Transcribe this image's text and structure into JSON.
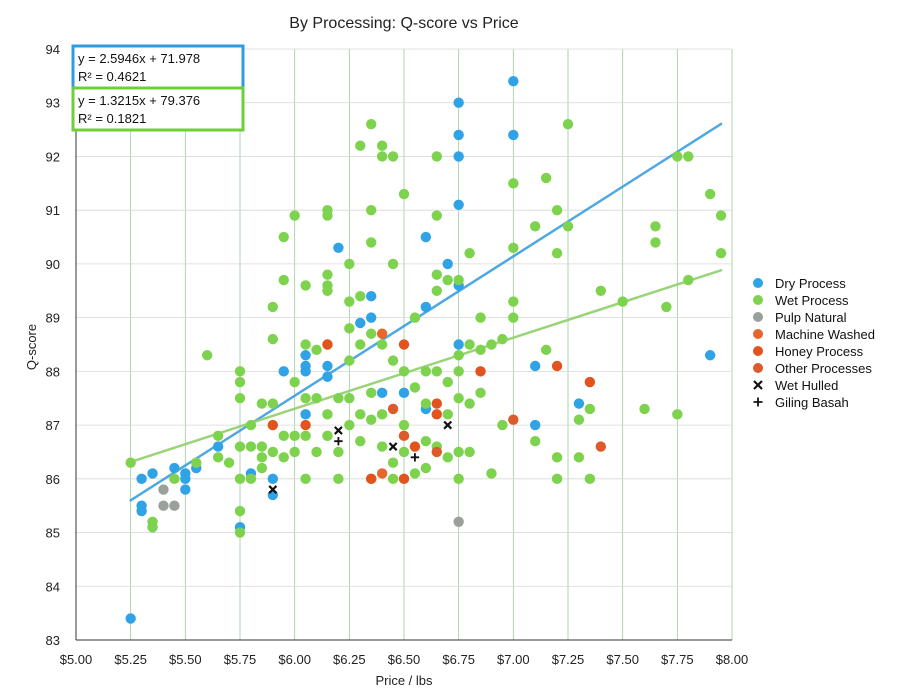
{
  "chart_data": {
    "type": "scatter",
    "title": "By Processing: Q-score vs Price",
    "xlabel": "Price / lbs",
    "ylabel": "Q-score",
    "xlim": [
      5.0,
      8.0
    ],
    "ylim": [
      83,
      94
    ],
    "x_ticks": [
      5.0,
      5.25,
      5.5,
      5.75,
      6.0,
      6.25,
      6.5,
      6.75,
      7.0,
      7.25,
      7.5,
      7.75,
      8.0
    ],
    "x_tick_labels": [
      "$5.00",
      "$5.25",
      "$5.50",
      "$5.75",
      "$6.00",
      "$6.25",
      "$6.50",
      "$6.75",
      "$7.00",
      "$7.25",
      "$7.50",
      "$7.75",
      "$8.00"
    ],
    "y_ticks": [
      83,
      84,
      85,
      86,
      87,
      88,
      89,
      90,
      91,
      92,
      93,
      94
    ],
    "y_tick_labels": [
      "83",
      "84",
      "85",
      "86",
      "87",
      "88",
      "89",
      "90",
      "91",
      "92",
      "93",
      "94"
    ],
    "grid": true,
    "legend_position": "right",
    "trendlines": [
      {
        "series": "Dry Process",
        "slope": 2.5946,
        "intercept": 71.978,
        "equation": "y = 2.5946x + 71.978",
        "r2": "R² = 0.4621",
        "color": "#3a9fe0",
        "box_color": "#2f9be0",
        "x_range": [
          5.25,
          7.95
        ]
      },
      {
        "series": "Wet Process",
        "slope": 1.3215,
        "intercept": 79.376,
        "equation": "y = 1.3215x + 79.376",
        "r2": "R² = 0.1821",
        "color": "#8fd16a",
        "box_color": "#6fcf3a",
        "x_range": [
          5.25,
          7.95
        ]
      }
    ],
    "series": [
      {
        "name": "Dry Process",
        "marker": "circle",
        "color": "#2fa3e6",
        "points": [
          [
            5.25,
            83.4
          ],
          [
            5.3,
            85.4
          ],
          [
            5.3,
            85.5
          ],
          [
            5.3,
            86.0
          ],
          [
            5.35,
            85.1
          ],
          [
            5.35,
            86.1
          ],
          [
            5.45,
            86.2
          ],
          [
            5.5,
            86.1
          ],
          [
            5.5,
            86.0
          ],
          [
            5.5,
            85.8
          ],
          [
            5.55,
            86.2
          ],
          [
            5.65,
            86.6
          ],
          [
            5.75,
            85.1
          ],
          [
            5.8,
            86.1
          ],
          [
            5.9,
            85.7
          ],
          [
            5.9,
            86.0
          ],
          [
            5.95,
            88.0
          ],
          [
            6.05,
            87.2
          ],
          [
            6.05,
            88.0
          ],
          [
            6.05,
            88.1
          ],
          [
            6.05,
            88.3
          ],
          [
            6.15,
            87.9
          ],
          [
            6.15,
            88.1
          ],
          [
            6.2,
            90.3
          ],
          [
            6.3,
            88.9
          ],
          [
            6.35,
            89.0
          ],
          [
            6.35,
            89.4
          ],
          [
            6.4,
            87.6
          ],
          [
            6.5,
            87.6
          ],
          [
            6.6,
            87.3
          ],
          [
            6.6,
            89.2
          ],
          [
            6.6,
            90.5
          ],
          [
            6.7,
            90.0
          ],
          [
            6.75,
            88.5
          ],
          [
            6.75,
            89.6
          ],
          [
            6.75,
            91.1
          ],
          [
            6.75,
            92.0
          ],
          [
            6.75,
            92.4
          ],
          [
            6.75,
            93.0
          ],
          [
            7.0,
            92.4
          ],
          [
            7.0,
            93.4
          ],
          [
            7.1,
            87.0
          ],
          [
            7.1,
            88.1
          ],
          [
            7.3,
            87.4
          ],
          [
            7.9,
            88.3
          ]
        ]
      },
      {
        "name": "Wet Process",
        "marker": "circle",
        "color": "#7ed34e",
        "points": [
          [
            5.25,
            86.3
          ],
          [
            5.35,
            85.2
          ],
          [
            5.35,
            85.1
          ],
          [
            5.45,
            86.0
          ],
          [
            5.55,
            86.3
          ],
          [
            5.6,
            88.3
          ],
          [
            5.65,
            86.8
          ],
          [
            5.65,
            86.4
          ],
          [
            5.7,
            86.3
          ],
          [
            5.75,
            86.6
          ],
          [
            5.75,
            86.0
          ],
          [
            5.75,
            85.4
          ],
          [
            5.75,
            85.0
          ],
          [
            5.75,
            87.5
          ],
          [
            5.75,
            87.8
          ],
          [
            5.75,
            88.0
          ],
          [
            5.8,
            86.6
          ],
          [
            5.8,
            86.0
          ],
          [
            5.8,
            87.0
          ],
          [
            5.85,
            86.6
          ],
          [
            5.85,
            86.2
          ],
          [
            5.85,
            86.4
          ],
          [
            5.85,
            87.4
          ],
          [
            5.9,
            88.6
          ],
          [
            5.9,
            89.2
          ],
          [
            5.9,
            87.4
          ],
          [
            5.9,
            86.5
          ],
          [
            5.95,
            86.8
          ],
          [
            5.95,
            86.4
          ],
          [
            5.95,
            89.7
          ],
          [
            5.95,
            90.5
          ],
          [
            6.0,
            90.9
          ],
          [
            6.0,
            87.8
          ],
          [
            6.0,
            86.8
          ],
          [
            6.0,
            86.5
          ],
          [
            6.05,
            89.6
          ],
          [
            6.05,
            88.5
          ],
          [
            6.05,
            86.8
          ],
          [
            6.05,
            86.0
          ],
          [
            6.05,
            87.5
          ],
          [
            6.1,
            88.4
          ],
          [
            6.1,
            87.5
          ],
          [
            6.1,
            86.5
          ],
          [
            6.15,
            91.0
          ],
          [
            6.15,
            90.9
          ],
          [
            6.15,
            89.8
          ],
          [
            6.15,
            89.6
          ],
          [
            6.15,
            89.5
          ],
          [
            6.15,
            88.5
          ],
          [
            6.15,
            87.2
          ],
          [
            6.15,
            86.8
          ],
          [
            6.2,
            87.5
          ],
          [
            6.2,
            86.5
          ],
          [
            6.2,
            86.0
          ],
          [
            6.25,
            90.0
          ],
          [
            6.25,
            89.3
          ],
          [
            6.25,
            88.8
          ],
          [
            6.25,
            88.2
          ],
          [
            6.25,
            87.5
          ],
          [
            6.25,
            87.0
          ],
          [
            6.3,
            92.2
          ],
          [
            6.3,
            89.4
          ],
          [
            6.3,
            88.5
          ],
          [
            6.3,
            87.2
          ],
          [
            6.3,
            86.7
          ],
          [
            6.35,
            92.6
          ],
          [
            6.35,
            91.0
          ],
          [
            6.35,
            90.4
          ],
          [
            6.35,
            88.7
          ],
          [
            6.35,
            87.6
          ],
          [
            6.35,
            87.1
          ],
          [
            6.35,
            86.0
          ],
          [
            6.4,
            92.2
          ],
          [
            6.4,
            92.0
          ],
          [
            6.4,
            88.5
          ],
          [
            6.4,
            87.2
          ],
          [
            6.4,
            86.6
          ],
          [
            6.45,
            92.0
          ],
          [
            6.45,
            90.0
          ],
          [
            6.45,
            88.2
          ],
          [
            6.45,
            86.3
          ],
          [
            6.45,
            86.0
          ],
          [
            6.5,
            91.3
          ],
          [
            6.5,
            88.0
          ],
          [
            6.5,
            87.0
          ],
          [
            6.5,
            86.5
          ],
          [
            6.55,
            89.0
          ],
          [
            6.55,
            87.7
          ],
          [
            6.55,
            86.1
          ],
          [
            6.6,
            88.0
          ],
          [
            6.6,
            87.4
          ],
          [
            6.6,
            86.7
          ],
          [
            6.6,
            86.2
          ],
          [
            6.65,
            92.0
          ],
          [
            6.65,
            90.9
          ],
          [
            6.65,
            89.8
          ],
          [
            6.65,
            89.5
          ],
          [
            6.65,
            88.0
          ],
          [
            6.65,
            86.6
          ],
          [
            6.7,
            89.7
          ],
          [
            6.7,
            87.8
          ],
          [
            6.7,
            87.2
          ],
          [
            6.7,
            86.4
          ],
          [
            6.75,
            89.7
          ],
          [
            6.75,
            88.3
          ],
          [
            6.75,
            88.0
          ],
          [
            6.75,
            87.5
          ],
          [
            6.75,
            86.5
          ],
          [
            6.75,
            86.0
          ],
          [
            6.8,
            90.2
          ],
          [
            6.8,
            88.5
          ],
          [
            6.8,
            87.4
          ],
          [
            6.8,
            86.5
          ],
          [
            6.85,
            89.0
          ],
          [
            6.85,
            88.4
          ],
          [
            6.85,
            87.6
          ],
          [
            6.9,
            88.5
          ],
          [
            6.9,
            86.1
          ],
          [
            6.95,
            88.6
          ],
          [
            6.95,
            87.0
          ],
          [
            7.0,
            91.5
          ],
          [
            7.0,
            90.3
          ],
          [
            7.0,
            89.3
          ],
          [
            7.0,
            89.0
          ],
          [
            7.1,
            90.7
          ],
          [
            7.1,
            86.7
          ],
          [
            7.15,
            91.6
          ],
          [
            7.15,
            88.4
          ],
          [
            7.2,
            91.0
          ],
          [
            7.2,
            90.2
          ],
          [
            7.2,
            86.4
          ],
          [
            7.2,
            86.0
          ],
          [
            7.25,
            92.6
          ],
          [
            7.25,
            90.7
          ],
          [
            7.3,
            86.4
          ],
          [
            7.3,
            87.1
          ],
          [
            7.35,
            87.3
          ],
          [
            7.35,
            86.0
          ],
          [
            7.4,
            89.5
          ],
          [
            7.5,
            89.3
          ],
          [
            7.6,
            87.3
          ],
          [
            7.65,
            90.7
          ],
          [
            7.65,
            90.4
          ],
          [
            7.7,
            89.2
          ],
          [
            7.75,
            92.0
          ],
          [
            7.75,
            87.2
          ],
          [
            7.8,
            92.0
          ],
          [
            7.8,
            89.7
          ],
          [
            7.9,
            91.3
          ],
          [
            7.95,
            90.9
          ],
          [
            7.95,
            90.2
          ]
        ]
      },
      {
        "name": "Pulp Natural",
        "marker": "circle",
        "color": "#9aa09a",
        "points": [
          [
            5.4,
            85.8
          ],
          [
            5.4,
            85.5
          ],
          [
            5.45,
            85.5
          ],
          [
            6.75,
            85.2
          ]
        ]
      },
      {
        "name": "Machine Washed",
        "marker": "circle",
        "color": "#e5672b",
        "points": [
          [
            6.4,
            88.7
          ],
          [
            6.4,
            86.1
          ]
        ]
      },
      {
        "name": "Honey Process",
        "marker": "circle",
        "color": "#e2531e",
        "points": [
          [
            5.9,
            87.0
          ],
          [
            6.05,
            87.0
          ],
          [
            6.15,
            88.5
          ],
          [
            6.35,
            86.0
          ],
          [
            6.5,
            88.5
          ],
          [
            6.5,
            86.0
          ],
          [
            6.55,
            86.6
          ],
          [
            6.65,
            87.4
          ],
          [
            6.65,
            87.2
          ],
          [
            6.85,
            88.0
          ],
          [
            7.2,
            88.1
          ],
          [
            7.35,
            87.8
          ]
        ]
      },
      {
        "name": "Other Processes",
        "marker": "circle",
        "color": "#de5a2a",
        "points": [
          [
            6.45,
            87.3
          ],
          [
            6.5,
            86.8
          ],
          [
            6.65,
            86.5
          ],
          [
            7.0,
            87.1
          ],
          [
            7.4,
            86.6
          ]
        ]
      },
      {
        "name": "Wet Hulled",
        "marker": "x",
        "color": "#111111",
        "points": [
          [
            5.9,
            85.8
          ],
          [
            6.2,
            86.9
          ],
          [
            6.45,
            86.6
          ],
          [
            6.7,
            87.0
          ]
        ]
      },
      {
        "name": "Giling Basah",
        "marker": "plus",
        "color": "#111111",
        "points": [
          [
            6.2,
            86.7
          ],
          [
            6.55,
            86.4
          ]
        ]
      }
    ]
  }
}
